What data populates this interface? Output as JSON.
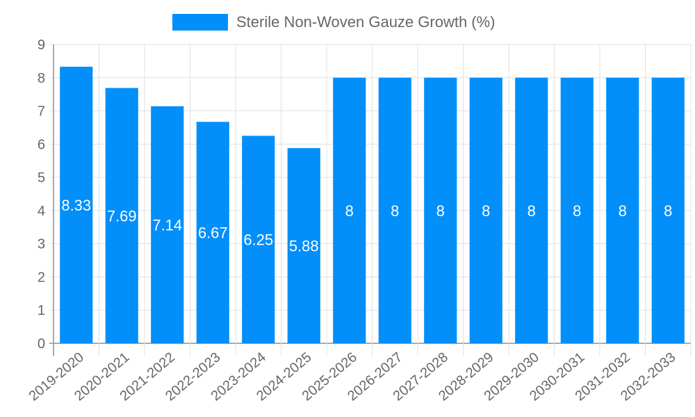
{
  "chart_data": {
    "type": "bar",
    "title": "",
    "legend": {
      "label": "Sterile Non-Woven Gauze Growth (%)",
      "position": "top"
    },
    "categories": [
      "2019-2020",
      "2020-2021",
      "2021-2022",
      "2022-2023",
      "2023-2024",
      "2024-2025",
      "2025-2026",
      "2026-2027",
      "2027-2028",
      "2028-2029",
      "2029-2030",
      "2030-2031",
      "2031-2032",
      "2032-2033"
    ],
    "series": [
      {
        "name": "Sterile Non-Woven Gauze Growth (%)",
        "color": "#038ffa",
        "values": [
          8.33,
          7.69,
          7.14,
          6.67,
          6.25,
          5.88,
          8,
          8,
          8,
          8,
          8,
          8,
          8,
          8
        ],
        "labels": [
          "8.33",
          "7.69",
          "7.14",
          "6.67",
          "6.25",
          "5.88",
          "8",
          "8",
          "8",
          "8",
          "8",
          "8",
          "8",
          "8"
        ]
      }
    ],
    "xlabel": "",
    "ylabel": "",
    "ylim": [
      0,
      9
    ],
    "yticks": [
      "0",
      "1",
      "2",
      "3",
      "4",
      "5",
      "6",
      "7",
      "8",
      "9"
    ],
    "grid": true
  }
}
